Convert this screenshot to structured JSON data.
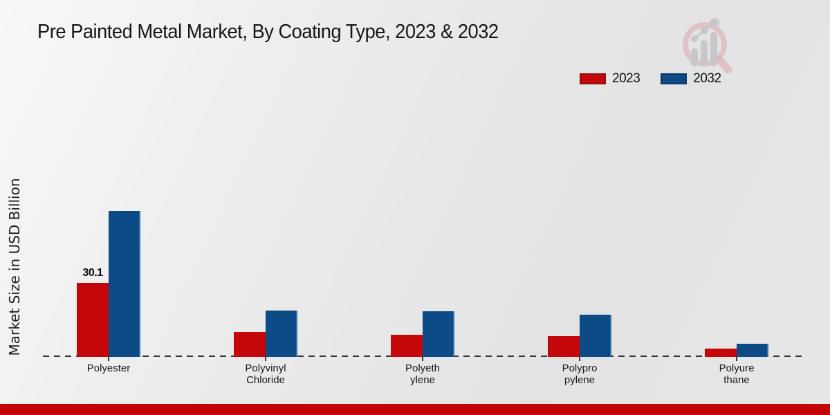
{
  "title": "Pre Painted Metal Market, By Coating Type, 2023 & 2032",
  "ylabel": "Market Size in USD Billion",
  "legend": {
    "items": [
      {
        "label": "2023"
      },
      {
        "label": "2032"
      }
    ]
  },
  "chart_data": {
    "type": "bar",
    "title": "Pre Painted Metal Market, By Coating Type, 2023 & 2032",
    "ylabel": "Market Size in USD Billion",
    "categories": [
      "Polyester",
      "Polyvinyl Chloride",
      "Polyethylene",
      "Polypropylene",
      "Polyurethane"
    ],
    "category_label_lines": [
      [
        "Polyester"
      ],
      [
        "Polyvinyl",
        "Chloride"
      ],
      [
        "Polyeth",
        "ylene"
      ],
      [
        "Polypro",
        "pylene"
      ],
      [
        "Polyure",
        "thane"
      ]
    ],
    "series": [
      {
        "name": "2023",
        "color": "#c40708",
        "border_color": "#8f1013",
        "values": [
          30.1,
          10.1,
          9.0,
          8.4,
          3.4
        ]
      },
      {
        "name": "2032",
        "color": "#0c4b86",
        "border_color": "#0a3a69",
        "edge_highlight": "#3c6fa5",
        "values": [
          59.4,
          18.8,
          18.6,
          17.2,
          5.3
        ]
      }
    ],
    "data_labels": [
      {
        "series": 0,
        "category": 0,
        "text": "30.1"
      }
    ],
    "ylim": [
      0,
      65
    ],
    "grid": false,
    "legend_position": "top-right",
    "baseline_style": "dashed",
    "colors": {
      "footer_strip": "#c40404",
      "background": "#e9e9e9"
    }
  },
  "logo_name": "market-research-magnifier-watermark"
}
